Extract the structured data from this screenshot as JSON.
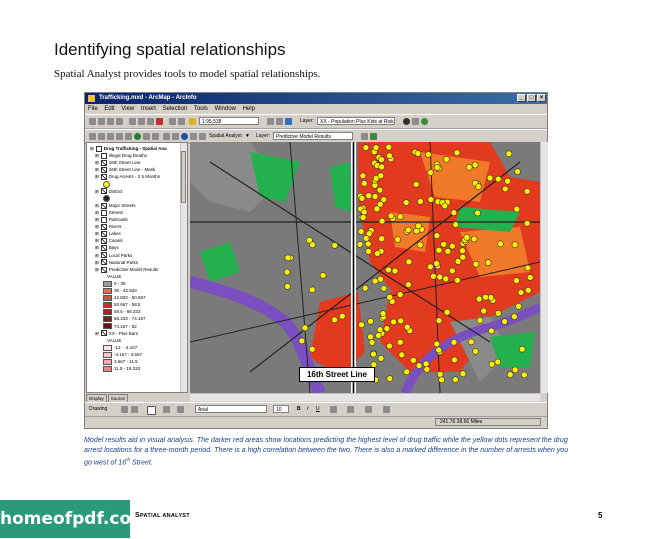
{
  "page": {
    "heading": "Identifying spatial relationships",
    "subheading": "Spatial Analyst provides tools to model spatial relationships.",
    "caption_part1": "Model results aid in visual analysis. The darker red areas show locations predicting the highest level of drug traffic while the yellow dots represent the drug arrest locations for a three-month period. There is a high correlation between the two. There is also a marked difference in the number of arrests when you go west of 16",
    "caption_sup": "th",
    "caption_part2": " Street.",
    "footer_section_big": "S",
    "footer_section_rest": "PATIAL ANALYST",
    "page_number": "5",
    "logo_text": "homeofpdf.com"
  },
  "app": {
    "title": "Trafficking.mxd - ArcMap - ArcInfo",
    "menu": [
      "File",
      "Edit",
      "View",
      "Insert",
      "Selection",
      "Tools",
      "Window",
      "Help"
    ],
    "scale": "1:95,538",
    "layer1_label": "Layer:",
    "layer1_value": "XX - Population Plus Kids at Risk",
    "spatial_analyst_label": "Spatial Analyst",
    "layer2_label": "Layer:",
    "layer2_value": "Predictive Model Results",
    "drawing_label": "Drawing",
    "font_value": "Arial",
    "font_size": "10",
    "coords": "241.76  38.66 Miles",
    "tabs": [
      "Display",
      "Source"
    ]
  },
  "toc": [
    {
      "type": "group",
      "label": "Drug Trafficking - Spatial Ana"
    },
    {
      "type": "layer",
      "checked": false,
      "label": "Illegal Drug Deaths"
    },
    {
      "type": "layer",
      "checked": true,
      "label": "16th Street Line"
    },
    {
      "type": "layer",
      "checked": true,
      "label": "16th Street Line - Mask"
    },
    {
      "type": "layer",
      "checked": true,
      "label": "Drug Arrests - 2.5 Months"
    },
    {
      "type": "symbol",
      "color": "#ffff00",
      "label": ""
    },
    {
      "type": "layer",
      "checked": true,
      "label": "District"
    },
    {
      "type": "symbol",
      "color": "#222222",
      "label": ""
    },
    {
      "type": "layer",
      "checked": true,
      "label": "Major Streets"
    },
    {
      "type": "layer",
      "checked": false,
      "label": "Streets"
    },
    {
      "type": "layer",
      "checked": false,
      "label": "Railroads"
    },
    {
      "type": "layer",
      "checked": true,
      "label": "Rivers"
    },
    {
      "type": "layer",
      "checked": true,
      "label": "Lakes"
    },
    {
      "type": "layer",
      "checked": true,
      "label": "Canals"
    },
    {
      "type": "layer",
      "checked": true,
      "label": "Bays"
    },
    {
      "type": "layer",
      "checked": true,
      "label": "Local Parks"
    },
    {
      "type": "layer",
      "checked": true,
      "label": "National Parks"
    },
    {
      "type": "layer",
      "checked": true,
      "label": "Predictive Model Results"
    },
    {
      "type": "heading",
      "label": "VALUE"
    },
    {
      "type": "swatch",
      "color": "#9a9a9a",
      "label": "0 - 35"
    },
    {
      "type": "swatch",
      "color": "#e07050",
      "label": "35 - 42.833"
    },
    {
      "type": "swatch",
      "color": "#d85040",
      "label": "42.833 - 50.667"
    },
    {
      "type": "swatch",
      "color": "#c83030",
      "label": "50.667 - 58.5"
    },
    {
      "type": "swatch",
      "color": "#b02020",
      "label": "58.5 - 66.333"
    },
    {
      "type": "swatch",
      "color": "#901818",
      "label": "66.333 - 74.167"
    },
    {
      "type": "swatch",
      "color": "#701010",
      "label": "74.167 - 82"
    },
    {
      "type": "layer",
      "checked": true,
      "label": "XX - Plus Bars"
    },
    {
      "type": "heading",
      "label": "VALUE"
    },
    {
      "type": "swatch",
      "color": "#fbe4e4",
      "label": "-12 - -4.167"
    },
    {
      "type": "swatch",
      "color": "#f6c8c8",
      "label": "-4.167 - 3.667"
    },
    {
      "type": "swatch",
      "color": "#f0a8a8",
      "label": "3.667 - 11.5"
    },
    {
      "type": "swatch",
      "color": "#e88888",
      "label": "11.5 - 19.333"
    }
  ],
  "map": {
    "label": "16th Street Line",
    "colors": {
      "background": "#7a7a7a",
      "red": "#e23a1e",
      "orange": "#f07a2a",
      "park": "#22b14c",
      "water": "#7a4fbf",
      "dots": "#ffef00",
      "roads": "#222222"
    }
  }
}
